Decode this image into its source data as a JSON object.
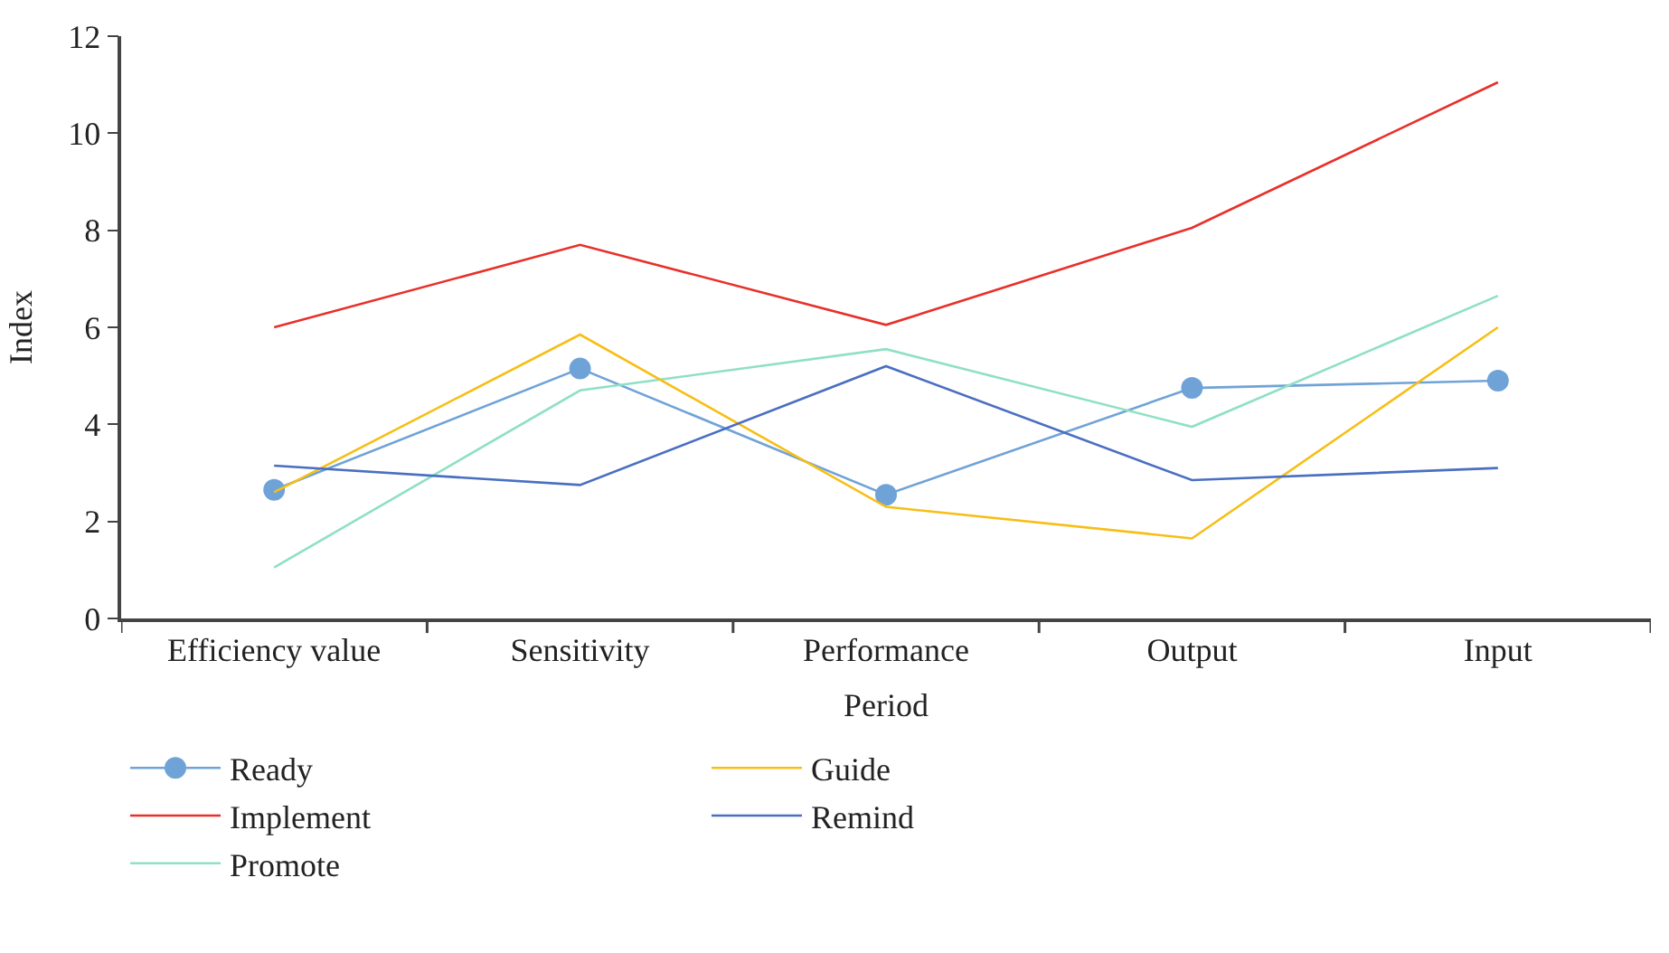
{
  "chart_data": {
    "type": "line",
    "xlabel": "Period",
    "ylabel": "Index",
    "categories": [
      "Efficiency value",
      "Sensitivity",
      "Performance",
      "Output",
      "Input"
    ],
    "series": [
      {
        "name": "Ready",
        "color": "#6fa3d8",
        "marker": "circle",
        "values": [
          2.65,
          5.15,
          2.55,
          4.75,
          4.9
        ]
      },
      {
        "name": "Implement",
        "color": "#e8302a",
        "values": [
          6.0,
          7.7,
          6.05,
          8.05,
          11.05
        ]
      },
      {
        "name": "Promote",
        "color": "#8fe0c4",
        "values": [
          1.05,
          4.7,
          5.55,
          3.95,
          6.65
        ]
      },
      {
        "name": "Guide",
        "color": "#f7be16",
        "values": [
          2.6,
          5.85,
          2.3,
          1.65,
          6.0
        ]
      },
      {
        "name": "Remind",
        "color": "#4a6fc1",
        "values": [
          3.15,
          2.75,
          5.2,
          2.85,
          3.1
        ]
      }
    ],
    "ylim": [
      0,
      12
    ],
    "yticks": [
      0,
      2,
      4,
      6,
      8,
      10,
      12
    ],
    "legend": "bottom",
    "marker": "none",
    "line_style": "solid"
  }
}
